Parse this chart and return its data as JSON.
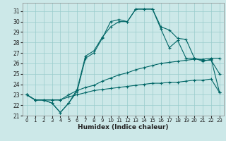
{
  "xlabel": "Humidex (Indice chaleur)",
  "bg_color": "#cce8e8",
  "grid_color": "#99cccc",
  "line_color": "#006666",
  "xlim": [
    -0.5,
    23.5
  ],
  "ylim": [
    21.0,
    31.8
  ],
  "yticks": [
    21,
    22,
    23,
    24,
    25,
    26,
    27,
    28,
    29,
    30,
    31
  ],
  "xticks": [
    0,
    1,
    2,
    3,
    4,
    5,
    6,
    7,
    8,
    9,
    10,
    11,
    12,
    13,
    14,
    15,
    16,
    17,
    18,
    19,
    20,
    21,
    22,
    23
  ],
  "series": [
    [
      23.0,
      22.5,
      22.5,
      22.2,
      21.3,
      22.2,
      23.5,
      26.7,
      27.2,
      28.5,
      29.5,
      30.0,
      30.0,
      31.2,
      31.2,
      31.2,
      29.5,
      29.2,
      28.4,
      28.3,
      26.5,
      26.3,
      26.3,
      25.0
    ],
    [
      23.0,
      22.5,
      22.5,
      22.2,
      21.3,
      22.2,
      23.3,
      26.5,
      27.0,
      28.4,
      30.0,
      30.2,
      30.0,
      31.2,
      31.2,
      31.2,
      29.3,
      27.5,
      28.2,
      26.5,
      26.5,
      26.2,
      26.4,
      23.2
    ],
    [
      23.0,
      22.5,
      22.5,
      22.5,
      22.5,
      23.0,
      23.4,
      23.7,
      23.9,
      24.3,
      24.6,
      24.9,
      25.1,
      25.4,
      25.6,
      25.8,
      26.0,
      26.1,
      26.2,
      26.3,
      26.4,
      26.4,
      26.5,
      26.5
    ],
    [
      23.0,
      22.5,
      22.5,
      22.5,
      22.5,
      22.8,
      23.0,
      23.2,
      23.4,
      23.5,
      23.6,
      23.7,
      23.8,
      23.9,
      24.0,
      24.1,
      24.1,
      24.2,
      24.2,
      24.3,
      24.4,
      24.4,
      24.5,
      23.2
    ]
  ]
}
